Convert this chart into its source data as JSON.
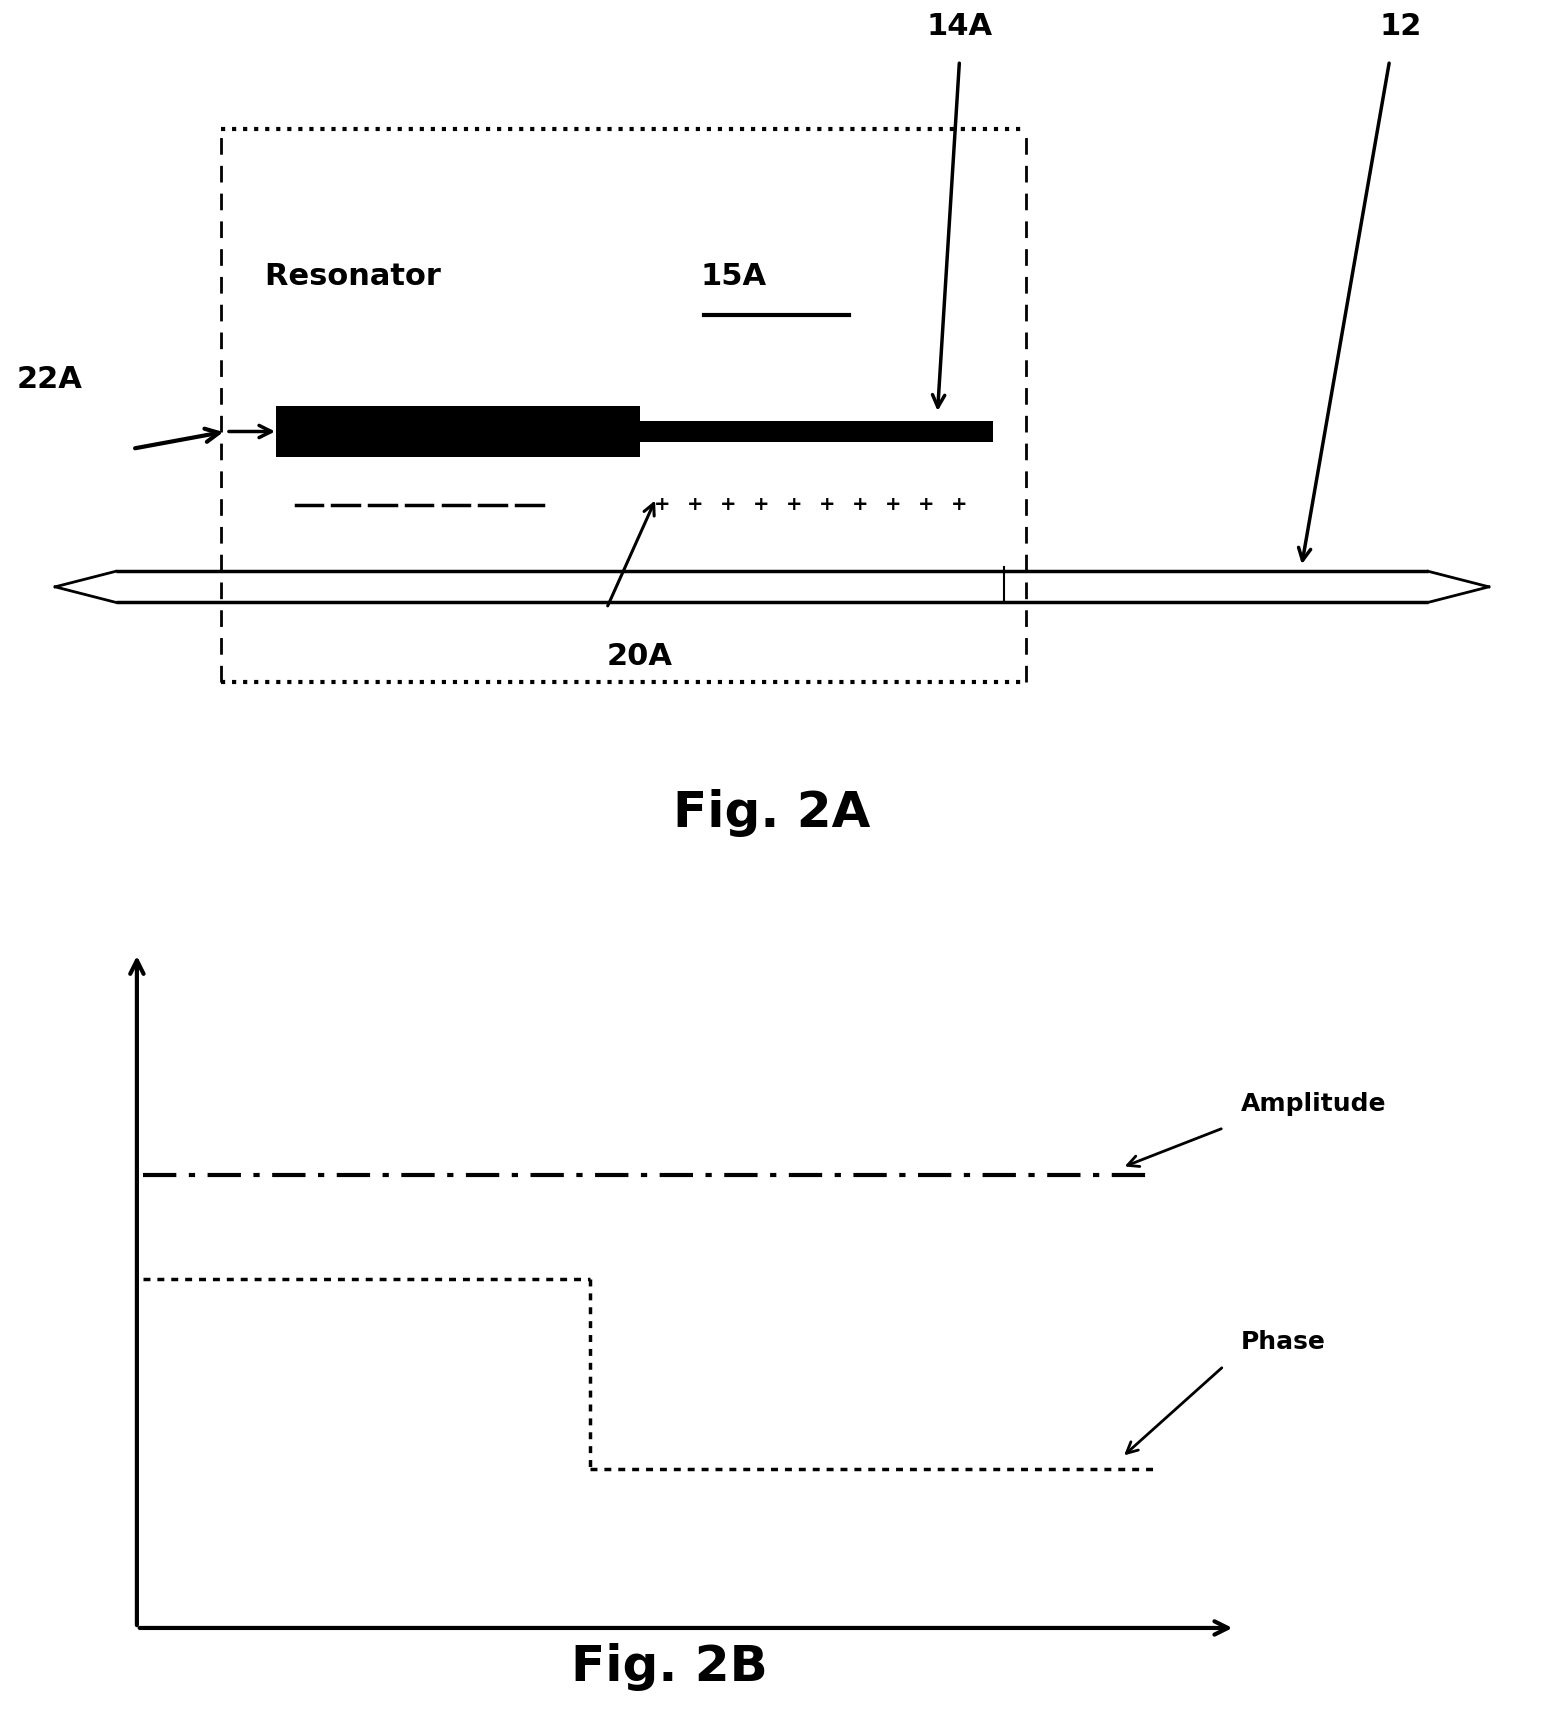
{
  "fig_width": 15.44,
  "fig_height": 17.26,
  "bg_color": "#ffffff",
  "fig2a_title": "Fig. 2A",
  "fig2b_title": "Fig. 2B",
  "label_14A": "14A",
  "label_12": "12",
  "label_22A": "22A",
  "label_20A": "20A",
  "label_resonator": "Resonator 15A"
}
